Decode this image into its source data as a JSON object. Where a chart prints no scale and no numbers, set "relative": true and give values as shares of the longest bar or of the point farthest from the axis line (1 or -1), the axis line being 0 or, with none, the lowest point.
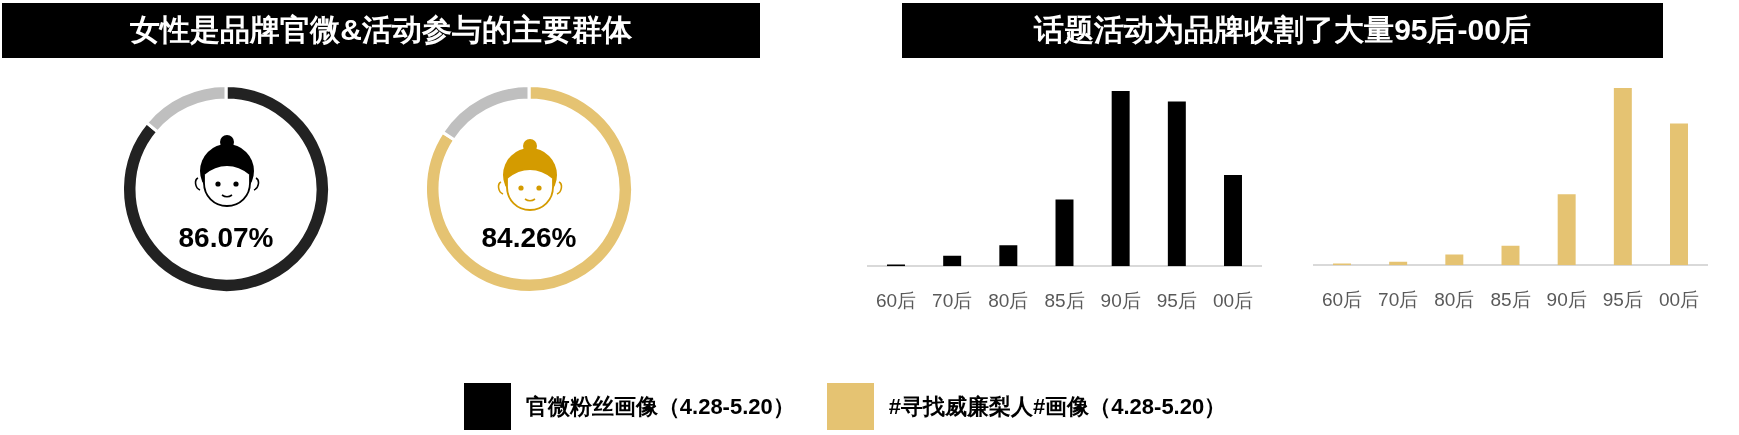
{
  "chart_data": [
    {
      "type": "donut",
      "title": "女性是品牌官微&活动参与的主要群体",
      "categories": [
        null,
        null
      ],
      "values": [
        86.07,
        13.93
      ],
      "colors": [
        "#222222",
        "#bfbfbf"
      ],
      "value_labels": [
        "86.07%",
        null
      ]
    },
    {
      "type": "donut",
      "categories": [
        null,
        null
      ],
      "values": [
        84.26,
        15.74
      ],
      "colors": [
        "#e5c372",
        "#bfbfbf"
      ],
      "value_labels": [
        "84.26%",
        null
      ]
    },
    {
      "type": "bar",
      "title": "话题活动为品牌收割了大量95后-00后",
      "categories": [
        "60后",
        "70后",
        "80后",
        "85后",
        "90后",
        "95后",
        "00后"
      ],
      "relative": true,
      "series": [
        {
          "name": "官微粉丝画像（4.28-5.20）",
          "color": "#000000",
          "values": [
            0.01,
            0.06,
            0.12,
            0.38,
            1,
            0.94,
            0.52
          ]
        }
      ],
      "legend": "bottom"
    },
    {
      "type": "bar",
      "categories": [
        "60后",
        "70后",
        "80后",
        "85后",
        "90后",
        "95后",
        "00后"
      ],
      "relative": true,
      "series": [
        {
          "name": "#寻找威廉梨人#画像（4.28-5.20）",
          "color": "#e5c372",
          "values": [
            0.01,
            0.02,
            0.06,
            0.11,
            0.4,
            1,
            0.8
          ]
        }
      ],
      "legend": "bottom"
    }
  ]
}
